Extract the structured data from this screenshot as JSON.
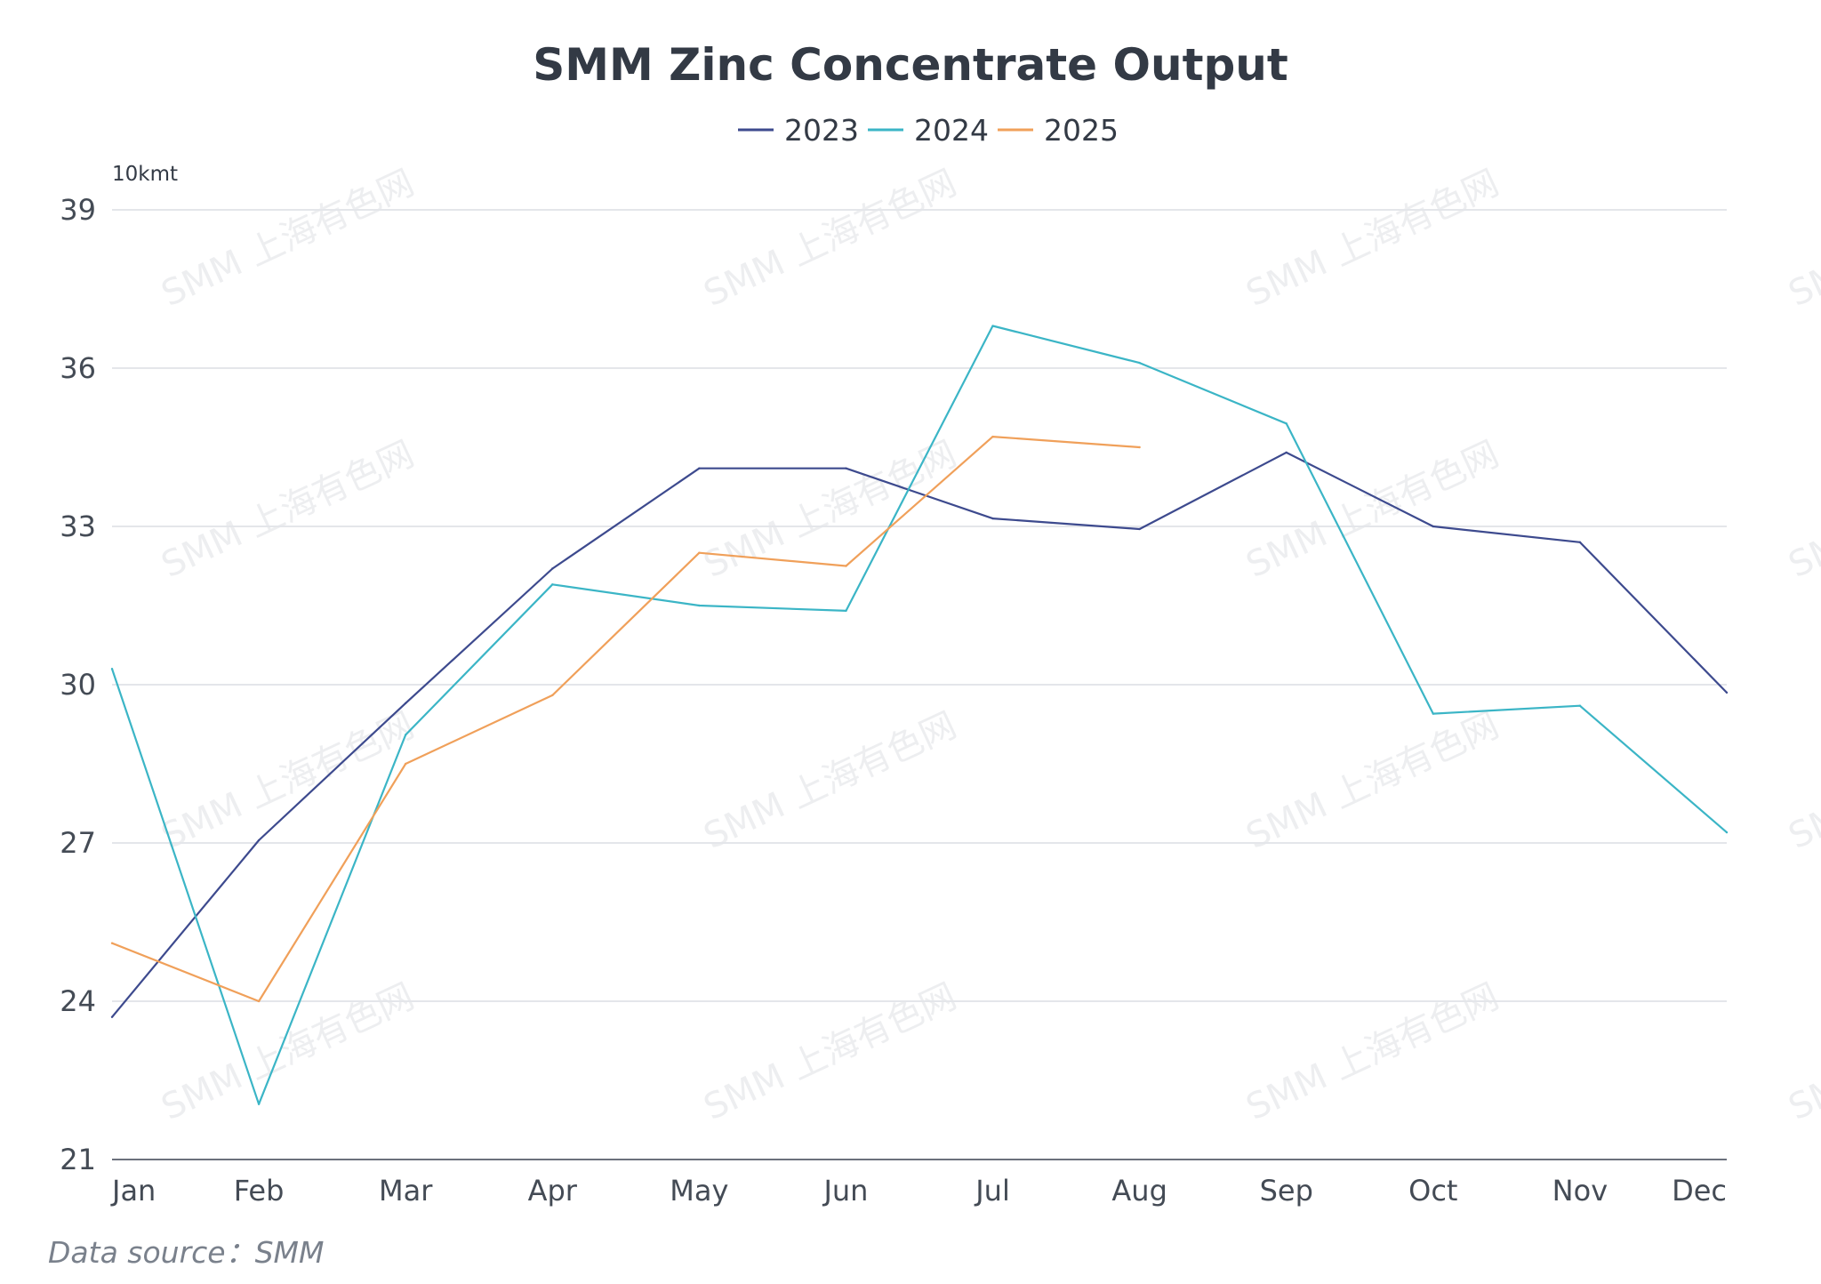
{
  "chart_data": {
    "type": "line",
    "title": "SMM Zinc Concentrate Output",
    "unit_label": "10kmt",
    "ylim": [
      21,
      39
    ],
    "yticks": [
      21,
      24,
      27,
      30,
      33,
      36,
      39
    ],
    "grid": true,
    "legend_position": "top-center",
    "categories": [
      "Jan",
      "Feb",
      "Mar",
      "Apr",
      "May",
      "Jun",
      "Jul",
      "Aug",
      "Sep",
      "Oct",
      "Nov",
      "Dec"
    ],
    "series": [
      {
        "name": "2023",
        "color": "#3d4a8e",
        "values": [
          23.7,
          27.05,
          29.65,
          32.2,
          34.1,
          34.1,
          33.15,
          32.95,
          34.4,
          33.0,
          32.7,
          29.85
        ]
      },
      {
        "name": "2024",
        "color": "#3bb5c6",
        "values": [
          30.3,
          22.05,
          29.05,
          31.9,
          31.5,
          31.4,
          36.8,
          36.1,
          34.95,
          29.45,
          29.6,
          27.2
        ]
      },
      {
        "name": "2025",
        "color": "#f0a05a",
        "values": [
          25.1,
          24.0,
          28.5,
          29.8,
          32.5,
          32.25,
          34.7,
          34.5,
          null,
          null,
          null,
          null
        ]
      }
    ],
    "source": "Data source：SMM",
    "watermark": "SMM 上海有色网"
  }
}
